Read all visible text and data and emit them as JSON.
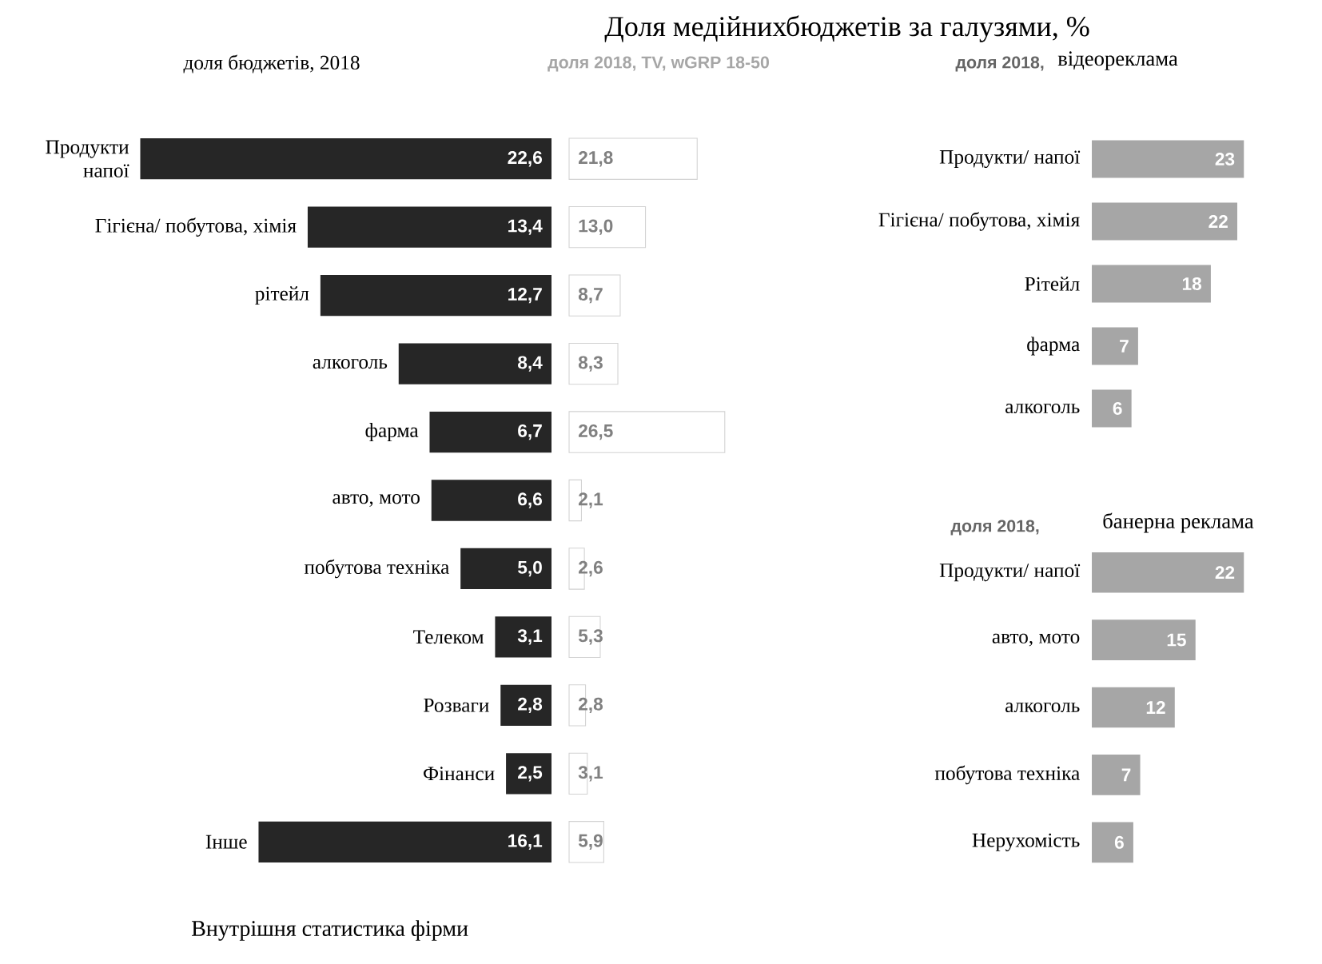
{
  "chart_data": [
    {
      "type": "bar",
      "orientation": "horizontal",
      "subtitle": "доля бюджетів, 2018",
      "annotations": [
        "Внутрішня статистика фірми"
      ],
      "categories": [
        "Продукти напої",
        "Гігієна/ побутова, хімія",
        "рітейл",
        "алкоголь",
        "фарма",
        "авто, мото",
        "побутова техніка",
        "Телеком",
        "Розваги",
        "Фінанси",
        "Інше"
      ],
      "values": [
        22.6,
        13.4,
        12.7,
        8.4,
        6.7,
        6.6,
        5.0,
        3.1,
        2.8,
        2.5,
        16.1
      ],
      "value_labels": [
        "22,6",
        "13,4",
        "12,7",
        "8,4",
        "6,7",
        "6,6",
        "5,0",
        "3,1",
        "2,8",
        "2,5",
        "16,1"
      ],
      "color": "#262626"
    },
    {
      "type": "bar",
      "orientation": "horizontal",
      "title": "Доля медійнихбюджетів за галузями, %",
      "subtitle": "доля 2018, TV, wGRP 18-50",
      "categories": [
        null,
        null,
        null,
        null,
        null,
        null,
        null,
        null,
        null,
        null,
        null
      ],
      "values": [
        21.8,
        13.0,
        8.7,
        8.3,
        26.5,
        2.1,
        2.6,
        5.3,
        2.8,
        3.1,
        5.9
      ],
      "value_labels": [
        "21,8",
        "13,0",
        "8,7",
        "8,3",
        "26,5",
        "2,1",
        "2,6",
        "5,3",
        "2,8",
        "3,1",
        "5,9"
      ],
      "color": "#ffffff"
    },
    {
      "type": "bar",
      "orientation": "horizontal",
      "title": "доля 2018,",
      "subtitle": "відеореклама",
      "categories": [
        "Продукти/ напої",
        "Гігієна/ побутова, хімія",
        "Рітейл",
        "фарма",
        "алкоголь"
      ],
      "values": [
        23,
        22,
        18,
        7,
        6
      ],
      "value_labels": [
        "23",
        "22",
        "18",
        "7",
        "6"
      ],
      "color": "#a6a6a6"
    },
    {
      "type": "bar",
      "orientation": "horizontal",
      "title": "доля 2018,",
      "subtitle": "банерна реклама",
      "categories": [
        "Продукти/ напої",
        "авто, мото",
        "алкоголь",
        "побутова техніка",
        "Нерухомість"
      ],
      "values": [
        22,
        15,
        12,
        7,
        6
      ],
      "value_labels": [
        "22",
        "15",
        "12",
        "7",
        "6"
      ],
      "color": "#a6a6a6"
    }
  ]
}
